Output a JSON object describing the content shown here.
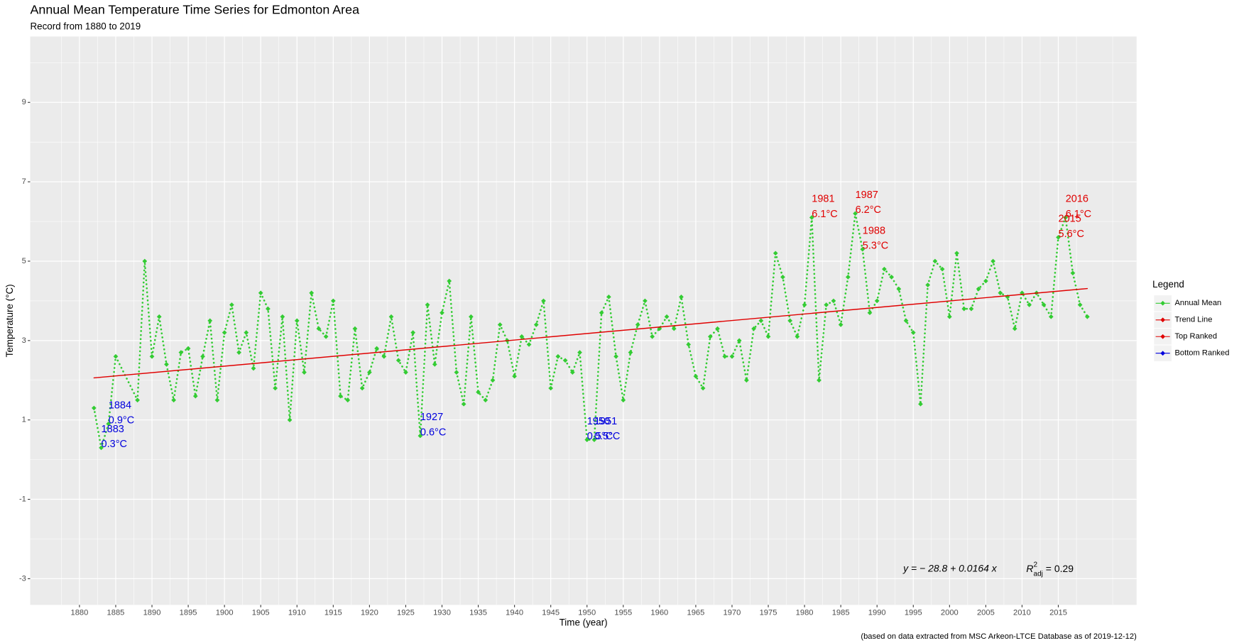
{
  "chart_data": {
    "type": "line",
    "title": "Annual Mean Temperature Time Series for Edmonton Area",
    "subtitle": "Record from 1880 to 2019",
    "x_label": "Time (year)",
    "y_label": "Temperature (°C)",
    "caption": "(based on data extracted from MSC Arkeon-LTCE Database as of 2019-12-12)",
    "legend_title": "Legend",
    "legend_position": "right",
    "grid": true,
    "xlim": [
      1873.2,
      2025.8
    ],
    "ylim": [
      -3.66,
      10.66
    ],
    "xticks": [
      1880,
      1885,
      1890,
      1895,
      1900,
      1905,
      1910,
      1915,
      1920,
      1925,
      1930,
      1935,
      1940,
      1945,
      1950,
      1955,
      1960,
      1965,
      1970,
      1975,
      1980,
      1985,
      1990,
      1995,
      2000,
      2005,
      2010,
      2015
    ],
    "yticks": [
      -3,
      -1,
      1,
      3,
      5,
      7,
      9
    ],
    "series": [
      {
        "name": "Annual Mean",
        "color": "#33cc33",
        "x": [
          1882,
          1883,
          1884,
          1885,
          1888,
          1889,
          1890,
          1891,
          1892,
          1893,
          1894,
          1895,
          1896,
          1897,
          1898,
          1899,
          1900,
          1901,
          1902,
          1903,
          1904,
          1905,
          1906,
          1907,
          1908,
          1909,
          1910,
          1911,
          1912,
          1913,
          1914,
          1915,
          1916,
          1917,
          1918,
          1919,
          1920,
          1921,
          1922,
          1923,
          1924,
          1925,
          1926,
          1927,
          1928,
          1929,
          1930,
          1931,
          1932,
          1933,
          1934,
          1935,
          1936,
          1937,
          1938,
          1939,
          1940,
          1941,
          1942,
          1943,
          1944,
          1945,
          1946,
          1947,
          1948,
          1949,
          1950,
          1951,
          1952,
          1953,
          1954,
          1955,
          1956,
          1957,
          1958,
          1959,
          1960,
          1961,
          1962,
          1963,
          1964,
          1965,
          1966,
          1967,
          1968,
          1969,
          1970,
          1971,
          1972,
          1973,
          1974,
          1975,
          1976,
          1977,
          1978,
          1979,
          1980,
          1981,
          1982,
          1983,
          1984,
          1985,
          1986,
          1987,
          1988,
          1989,
          1990,
          1991,
          1992,
          1993,
          1994,
          1995,
          1996,
          1997,
          1998,
          1999,
          2000,
          2001,
          2002,
          2003,
          2004,
          2005,
          2006,
          2007,
          2008,
          2009,
          2010,
          2011,
          2012,
          2013,
          2014,
          2015,
          2016,
          2017,
          2018,
          2019
        ],
        "values": [
          1.3,
          0.3,
          0.9,
          2.6,
          1.5,
          5.0,
          2.6,
          3.6,
          2.4,
          1.5,
          2.7,
          2.8,
          1.6,
          2.6,
          3.5,
          1.5,
          3.2,
          3.9,
          2.7,
          3.2,
          2.3,
          4.2,
          3.8,
          1.8,
          3.6,
          1.0,
          3.5,
          2.2,
          4.2,
          3.3,
          3.1,
          4.0,
          1.6,
          1.5,
          3.3,
          1.8,
          2.2,
          2.8,
          2.6,
          3.6,
          2.5,
          2.2,
          3.2,
          0.6,
          3.9,
          2.4,
          3.7,
          4.5,
          2.2,
          1.4,
          3.6,
          1.7,
          1.5,
          2.0,
          3.4,
          3.0,
          2.1,
          3.1,
          2.9,
          3.4,
          4.0,
          1.8,
          2.6,
          2.5,
          2.2,
          2.7,
          0.5,
          0.5,
          3.7,
          4.1,
          2.6,
          1.5,
          2.7,
          3.4,
          4.0,
          3.1,
          3.3,
          3.6,
          3.3,
          4.1,
          2.9,
          2.1,
          1.8,
          3.1,
          3.3,
          2.6,
          2.6,
          3.0,
          2.0,
          3.3,
          3.5,
          3.1,
          5.2,
          4.6,
          3.5,
          3.1,
          3.9,
          6.1,
          2.0,
          3.9,
          4.0,
          3.4,
          4.6,
          6.2,
          5.3,
          3.7,
          4.0,
          4.8,
          4.6,
          4.3,
          3.5,
          3.2,
          1.4,
          4.4,
          5.0,
          4.8,
          3.6,
          5.2,
          3.8,
          3.8,
          4.3,
          4.5,
          5.0,
          4.2,
          4.1,
          3.3,
          4.2,
          3.9,
          4.2,
          3.9,
          3.6,
          5.6,
          6.1,
          4.7,
          3.9,
          3.6
        ]
      },
      {
        "name": "Trend Line",
        "color": "#e00000",
        "x": [
          1882,
          2019
        ],
        "values": [
          2.06,
          4.31
        ]
      }
    ],
    "ranked": [
      {
        "name": "Top Ranked",
        "color": "#e00000",
        "points": [
          {
            "x": 1981,
            "value": 6.1,
            "label": "1981",
            "value_label": "6.1°C"
          },
          {
            "x": 1987,
            "value": 6.2,
            "label": "1987",
            "value_label": "6.2°C"
          },
          {
            "x": 1988,
            "value": 5.3,
            "label": "1988",
            "value_label": "5.3°C"
          },
          {
            "x": 2015,
            "value": 5.6,
            "label": "2015",
            "value_label": "5.6°C"
          },
          {
            "x": 2016,
            "value": 6.1,
            "label": "2016",
            "value_label": "6.1°C"
          }
        ]
      },
      {
        "name": "Bottom Ranked",
        "color": "#0000dd",
        "points": [
          {
            "x": 1883,
            "value": 0.3,
            "label": "1883",
            "value_label": "0.3°C"
          },
          {
            "x": 1884,
            "value": 0.9,
            "label": "1884",
            "value_label": "0.9°C"
          },
          {
            "x": 1927,
            "value": 0.6,
            "label": "1927",
            "value_label": "0.6°C"
          },
          {
            "x": 1950,
            "value": 0.5,
            "label": "1950",
            "value_label": "0.5°C"
          },
          {
            "x": 1951,
            "value": 0.5,
            "label": "1951",
            "value_label": "0.5°C"
          }
        ]
      }
    ],
    "equation": "y  =  − 28.8 + 0.0164  x",
    "r2_symbol": "R",
    "r2_sup": "2",
    "r2_sub": "adj",
    "r2_text": " =  0.29"
  }
}
